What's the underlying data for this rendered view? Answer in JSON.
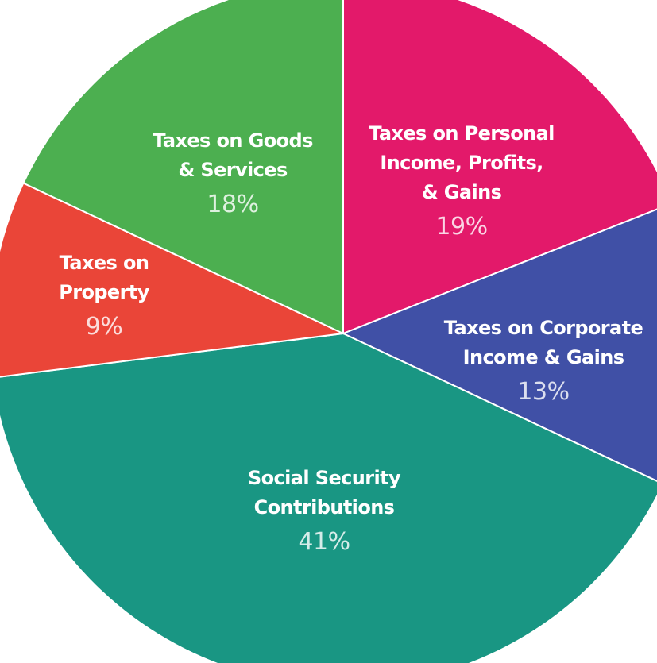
{
  "chart_data": {
    "type": "pie",
    "title": "",
    "slices": [
      {
        "label_lines": [
          "Taxes on Personal",
          "Income, Profits,",
          "& Gains"
        ],
        "value": 19,
        "value_label": "19%",
        "color": "#E3196A"
      },
      {
        "label_lines": [
          "Taxes on Corporate",
          "Income & Gains"
        ],
        "value": 13,
        "value_label": "13%",
        "color": "#4050A6"
      },
      {
        "label_lines": [
          "Social Security",
          "Contributions"
        ],
        "value": 41,
        "value_label": "41%",
        "color": "#199683"
      },
      {
        "label_lines": [
          "Taxes on",
          "Property"
        ],
        "value": 9,
        "value_label": "9%",
        "color": "#EA4538"
      },
      {
        "label_lines": [
          "Taxes on Goods",
          "& Services"
        ],
        "value": 18,
        "value_label": "18%",
        "color": "#4CAF50"
      }
    ],
    "start": "12 o'clock",
    "direction": "clockwise",
    "legend": "none"
  }
}
